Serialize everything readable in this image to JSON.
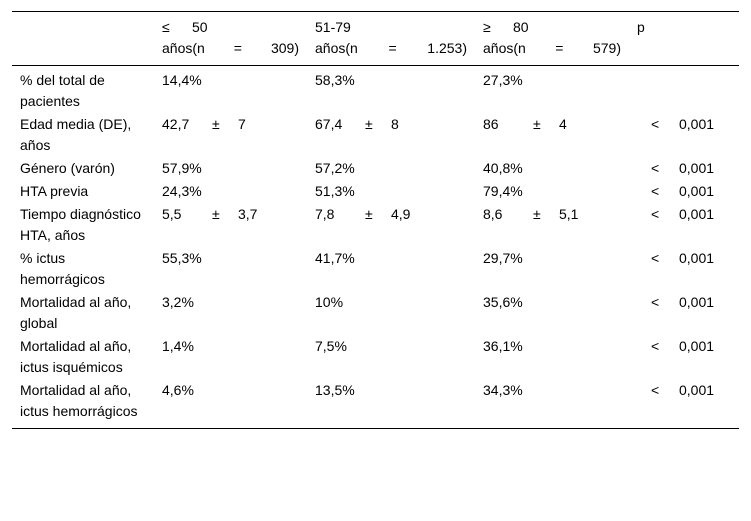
{
  "header": {
    "col0": "",
    "col1": {
      "line1": [
        "≤",
        "50"
      ],
      "line2": [
        "años(n",
        "=",
        "309)"
      ]
    },
    "col2": {
      "line1": [
        "51-79"
      ],
      "line2": [
        "años(n",
        "=",
        "1.253)"
      ]
    },
    "col3": {
      "line1": [
        "≥",
        "80"
      ],
      "line2": [
        "años(n",
        "=",
        "579)"
      ]
    },
    "col4": "p"
  },
  "rows": [
    {
      "label": "% del total de pacientes",
      "v1": "14,4%",
      "v2": "58,3%",
      "v3": "27,3%",
      "p_sign": "",
      "p": ""
    },
    {
      "label": "Edad media (DE), años",
      "v1": [
        "42,7",
        "±",
        "7"
      ],
      "v2": [
        "67,4",
        "±",
        "8"
      ],
      "v3": [
        "86",
        "±",
        "4"
      ],
      "p_sign": "<",
      "p": "0,001"
    },
    {
      "label": "Género (varón)",
      "v1": "57,9%",
      "v2": "57,2%",
      "v3": "40,8%",
      "p_sign": "<",
      "p": "0,001"
    },
    {
      "label": "HTA previa",
      "v1": "24,3%",
      "v2": "51,3%",
      "v3": "79,4%",
      "p_sign": "<",
      "p": "0,001"
    },
    {
      "label": "Tiempo diagnóstico HTA, años",
      "v1": [
        "5,5",
        "±",
        "3,7"
      ],
      "v2": [
        "7,8",
        "±",
        "4,9"
      ],
      "v3": [
        "8,6",
        "±",
        "5,1"
      ],
      "p_sign": "<",
      "p": "0,001"
    },
    {
      "label": "% ictus hemorrágicos",
      "v1": "55,3%",
      "v2": "41,7%",
      "v3": "29,7%",
      "p_sign": "<",
      "p": "0,001"
    },
    {
      "label": "Mortalidad al año, global",
      "v1": "3,2%",
      "v2": "10%",
      "v3": "35,6%",
      "p_sign": "<",
      "p": "0,001"
    },
    {
      "label": "Mortalidad al año, ictus isquémicos",
      "v1": "1,4%",
      "v2": "7,5%",
      "v3": "36,1%",
      "p_sign": "<",
      "p": "0,001"
    },
    {
      "label": "Mortalidad al año, ictus hemorrágicos",
      "v1": "4,6%",
      "v2": "13,5%",
      "v3": "34,3%",
      "p_sign": "<",
      "p": "0,001"
    }
  ]
}
